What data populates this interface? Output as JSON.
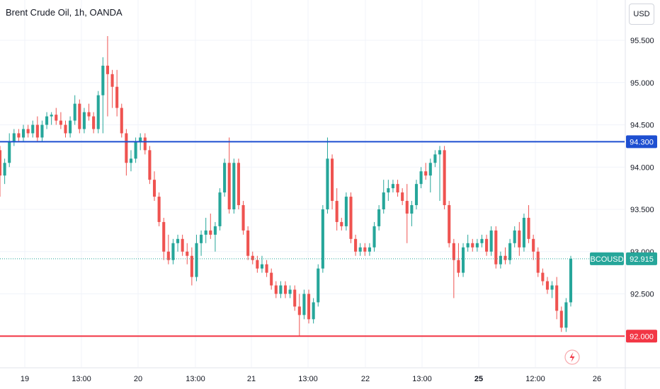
{
  "title": "Brent Crude Oil, 1h, OANDA",
  "currency_button": "USD",
  "colors": {
    "up": "#26a69a",
    "down": "#ef5350",
    "resistance": "#1e4fd1",
    "support": "#f23645",
    "last": "#26a69a"
  },
  "chart_data": {
    "type": "candlestick",
    "title": "Brent Crude Oil, 1h, OANDA",
    "symbol": "BCOUSD",
    "ylim": [
      91.65,
      95.85
    ],
    "y_ticks": [
      "95.500",
      "95.000",
      "94.500",
      "94.000",
      "93.500",
      "93.000",
      "92.500"
    ],
    "x_ticks": [
      "19",
      "13:00",
      "20",
      "13:00",
      "21",
      "13:00",
      "22",
      "13:00",
      "25",
      "12:00",
      "26"
    ],
    "x_ticks_bold": [
      "25"
    ],
    "levels": [
      {
        "label": "94.300",
        "value": 94.3,
        "role": "resistance"
      },
      {
        "label": "92.000",
        "value": 92.0,
        "role": "support"
      }
    ],
    "last_price": {
      "symbol": "BCOUSD",
      "label": "92.915",
      "value": 92.915
    },
    "candles": [
      [
        94.2,
        94.25,
        93.65,
        93.9
      ],
      [
        93.9,
        94.1,
        93.8,
        94.05
      ],
      [
        94.05,
        94.4,
        94.0,
        94.3
      ],
      [
        94.3,
        94.45,
        94.25,
        94.4
      ],
      [
        94.4,
        94.45,
        94.3,
        94.35
      ],
      [
        94.35,
        94.5,
        94.3,
        94.45
      ],
      [
        94.45,
        94.5,
        94.35,
        94.4
      ],
      [
        94.4,
        94.55,
        94.35,
        94.5
      ],
      [
        94.5,
        94.6,
        94.3,
        94.35
      ],
      [
        94.35,
        94.55,
        94.3,
        94.5
      ],
      [
        94.5,
        94.65,
        94.45,
        94.6
      ],
      [
        94.6,
        94.65,
        94.5,
        94.62
      ],
      [
        94.62,
        94.7,
        94.5,
        94.55
      ],
      [
        94.55,
        94.65,
        94.45,
        94.5
      ],
      [
        94.5,
        94.55,
        94.35,
        94.4
      ],
      [
        94.4,
        94.6,
        94.35,
        94.55
      ],
      [
        94.55,
        94.85,
        94.5,
        94.75
      ],
      [
        94.75,
        94.8,
        94.4,
        94.45
      ],
      [
        94.45,
        94.7,
        94.4,
        94.65
      ],
      [
        94.65,
        94.75,
        94.55,
        94.6
      ],
      [
        94.6,
        94.65,
        94.4,
        94.45
      ],
      [
        94.45,
        94.9,
        94.4,
        94.85
      ],
      [
        94.85,
        95.3,
        94.4,
        95.2
      ],
      [
        95.2,
        95.55,
        94.6,
        95.1
      ],
      [
        95.1,
        95.15,
        94.7,
        94.95
      ],
      [
        94.95,
        95.15,
        94.6,
        94.7
      ],
      [
        94.7,
        94.75,
        94.35,
        94.4
      ],
      [
        94.4,
        94.45,
        93.9,
        94.05
      ],
      [
        94.05,
        94.2,
        93.95,
        94.1
      ],
      [
        94.1,
        94.35,
        94.05,
        94.3
      ],
      [
        94.3,
        94.4,
        94.2,
        94.35
      ],
      [
        94.35,
        94.4,
        94.15,
        94.2
      ],
      [
        94.2,
        94.25,
        93.8,
        93.85
      ],
      [
        93.85,
        93.95,
        93.6,
        93.65
      ],
      [
        93.65,
        93.7,
        93.3,
        93.35
      ],
      [
        93.35,
        93.4,
        92.9,
        93.0
      ],
      [
        93.0,
        93.2,
        92.85,
        92.9
      ],
      [
        92.9,
        93.15,
        92.85,
        93.1
      ],
      [
        93.1,
        93.2,
        93.0,
        93.15
      ],
      [
        93.15,
        93.2,
        92.95,
        93.0
      ],
      [
        93.0,
        93.1,
        92.85,
        92.95
      ],
      [
        92.95,
        93.05,
        92.6,
        92.7
      ],
      [
        92.7,
        93.2,
        92.65,
        93.1
      ],
      [
        93.1,
        93.25,
        92.95,
        93.2
      ],
      [
        93.2,
        93.4,
        93.1,
        93.25
      ],
      [
        93.25,
        93.45,
        93.15,
        93.2
      ],
      [
        93.2,
        93.35,
        93.0,
        93.3
      ],
      [
        93.3,
        93.75,
        93.25,
        93.7
      ],
      [
        93.7,
        94.1,
        93.65,
        94.05
      ],
      [
        94.05,
        94.35,
        93.45,
        93.5
      ],
      [
        93.5,
        94.1,
        93.45,
        94.05
      ],
      [
        94.05,
        94.1,
        93.5,
        93.55
      ],
      [
        93.55,
        93.6,
        93.2,
        93.25
      ],
      [
        93.25,
        93.3,
        92.9,
        92.95
      ],
      [
        92.95,
        93.0,
        92.85,
        92.9
      ],
      [
        92.9,
        92.95,
        92.75,
        92.8
      ],
      [
        92.8,
        92.95,
        92.75,
        92.85
      ],
      [
        92.85,
        92.9,
        92.7,
        92.75
      ],
      [
        92.75,
        92.8,
        92.55,
        92.6
      ],
      [
        92.6,
        92.65,
        92.45,
        92.5
      ],
      [
        92.5,
        92.65,
        92.45,
        92.6
      ],
      [
        92.6,
        92.65,
        92.45,
        92.5
      ],
      [
        92.5,
        92.6,
        92.45,
        92.55
      ],
      [
        92.55,
        92.6,
        92.3,
        92.35
      ],
      [
        92.35,
        92.5,
        92.0,
        92.25
      ],
      [
        92.25,
        92.55,
        92.2,
        92.5
      ],
      [
        92.5,
        92.55,
        92.15,
        92.2
      ],
      [
        92.2,
        92.45,
        92.15,
        92.4
      ],
      [
        92.4,
        92.85,
        92.35,
        92.8
      ],
      [
        92.8,
        93.55,
        92.75,
        93.5
      ],
      [
        93.5,
        94.35,
        93.45,
        94.1
      ],
      [
        94.1,
        94.15,
        93.5,
        93.6
      ],
      [
        93.6,
        93.75,
        93.25,
        93.35
      ],
      [
        93.35,
        93.4,
        93.25,
        93.3
      ],
      [
        93.3,
        93.7,
        93.25,
        93.65
      ],
      [
        93.65,
        93.7,
        93.1,
        93.15
      ],
      [
        93.15,
        93.2,
        92.95,
        93.0
      ],
      [
        93.0,
        93.1,
        92.95,
        93.05
      ],
      [
        93.05,
        93.1,
        92.95,
        93.0
      ],
      [
        93.0,
        93.1,
        92.95,
        93.05
      ],
      [
        93.05,
        93.35,
        93.0,
        93.3
      ],
      [
        93.3,
        93.55,
        93.25,
        93.5
      ],
      [
        93.5,
        93.85,
        93.45,
        93.7
      ],
      [
        93.7,
        93.85,
        93.6,
        93.75
      ],
      [
        93.75,
        93.85,
        93.7,
        93.8
      ],
      [
        93.8,
        93.85,
        93.65,
        93.7
      ],
      [
        93.7,
        93.75,
        93.55,
        93.6
      ],
      [
        93.6,
        93.8,
        93.1,
        93.45
      ],
      [
        93.45,
        93.6,
        93.3,
        93.55
      ],
      [
        93.55,
        93.85,
        93.5,
        93.8
      ],
      [
        93.8,
        94.0,
        93.75,
        93.95
      ],
      [
        93.95,
        94.05,
        93.85,
        93.9
      ],
      [
        93.9,
        94.1,
        93.7,
        94.05
      ],
      [
        94.05,
        94.2,
        94.0,
        94.15
      ],
      [
        94.15,
        94.25,
        93.6,
        94.2
      ],
      [
        94.2,
        94.25,
        93.5,
        93.55
      ],
      [
        93.55,
        93.6,
        93.05,
        93.1
      ],
      [
        93.1,
        93.15,
        92.45,
        92.9
      ],
      [
        92.9,
        93.1,
        92.7,
        92.75
      ],
      [
        92.75,
        93.1,
        92.7,
        93.05
      ],
      [
        93.05,
        93.2,
        93.0,
        93.1
      ],
      [
        93.1,
        93.15,
        93.0,
        93.05
      ],
      [
        93.05,
        93.15,
        93.0,
        93.1
      ],
      [
        93.1,
        93.2,
        93.05,
        93.15
      ],
      [
        93.15,
        93.2,
        92.95,
        93.0
      ],
      [
        93.0,
        93.3,
        92.95,
        93.25
      ],
      [
        93.25,
        93.3,
        92.8,
        92.85
      ],
      [
        92.85,
        93.0,
        92.8,
        92.95
      ],
      [
        92.95,
        93.05,
        92.85,
        92.9
      ],
      [
        92.9,
        93.15,
        92.85,
        93.1
      ],
      [
        93.1,
        93.3,
        93.05,
        93.25
      ],
      [
        93.25,
        93.35,
        92.95,
        93.05
      ],
      [
        93.05,
        93.45,
        93.0,
        93.4
      ],
      [
        93.4,
        93.55,
        93.1,
        93.15
      ],
      [
        93.15,
        93.2,
        92.9,
        93.0
      ],
      [
        93.0,
        93.05,
        92.7,
        92.75
      ],
      [
        92.75,
        92.8,
        92.6,
        92.65
      ],
      [
        92.65,
        92.7,
        92.5,
        92.55
      ],
      [
        92.55,
        92.65,
        92.45,
        92.6
      ],
      [
        92.6,
        92.7,
        92.2,
        92.3
      ],
      [
        92.3,
        92.35,
        92.05,
        92.1
      ],
      [
        92.1,
        92.45,
        92.05,
        92.4
      ],
      [
        92.4,
        92.95,
        92.35,
        92.915
      ]
    ]
  }
}
